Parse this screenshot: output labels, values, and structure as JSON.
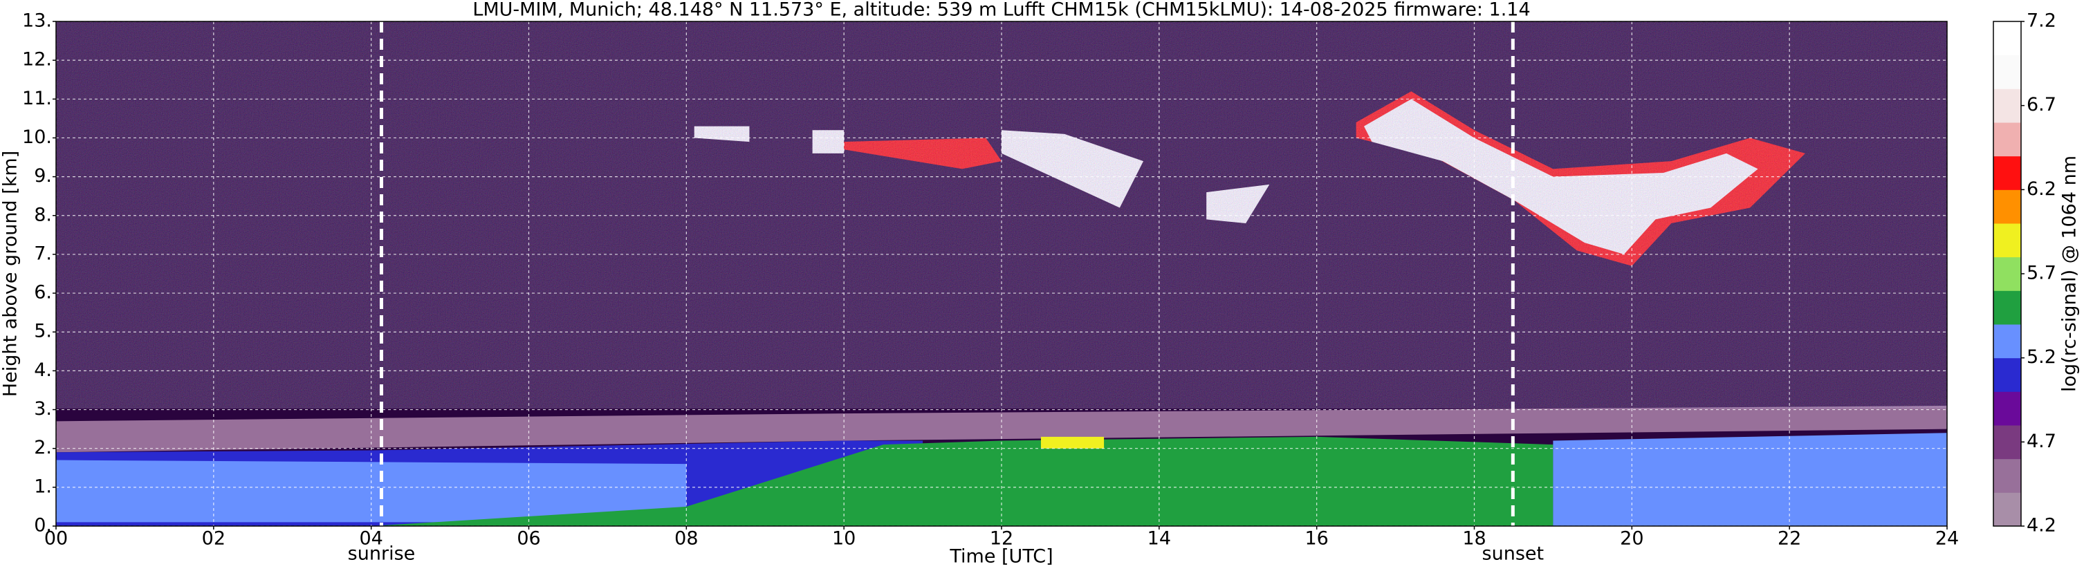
{
  "chart_data": {
    "type": "heatmap",
    "title": "LMU-MIM, Munich; 48.148° N 11.573° E, altitude: 539 m    Lufft CHM15k (CHM15kLMU): 14-08-2025    firmware: 1.14",
    "x_label": "Time [UTC]",
    "y_label": "Height above ground [km]",
    "colorbar_label": "log(rc-signal) @ 1064 nm",
    "xlim": [
      0,
      24
    ],
    "xticks": [
      {
        "value": 0,
        "label": "00"
      },
      {
        "value": 2,
        "label": "02"
      },
      {
        "value": 4,
        "label": "04"
      },
      {
        "value": 6,
        "label": "06"
      },
      {
        "value": 8,
        "label": "08"
      },
      10,
      12,
      14,
      16,
      18,
      20,
      22,
      24
    ],
    "ylim": [
      0,
      13
    ],
    "yticks": [
      {
        "value": 0,
        "label": "0."
      },
      {
        "value": 1,
        "label": "1."
      },
      {
        "value": 2,
        "label": "2."
      },
      {
        "value": 3,
        "label": "3."
      },
      {
        "value": 4,
        "label": "4."
      },
      {
        "value": 5,
        "label": "5."
      },
      {
        "value": 6,
        "label": "6."
      },
      {
        "value": 7,
        "label": "7."
      },
      {
        "value": 8,
        "label": "8."
      },
      {
        "value": 9,
        "label": "9."
      },
      {
        "value": 10,
        "label": "10."
      },
      {
        "value": 11,
        "label": "11."
      },
      {
        "value": 12,
        "label": "12."
      },
      {
        "value": 13,
        "label": "13."
      }
    ],
    "clim": [
      4.2,
      7.2
    ],
    "cticks": [
      4.2,
      4.7,
      5.2,
      5.7,
      6.2,
      6.7,
      7.2
    ],
    "colormap": [
      "#a88ea8",
      "#98709a",
      "#7a3a80",
      "#6a0a9a",
      "#2a2ad0",
      "#6890ff",
      "#20a040",
      "#90e060",
      "#f0f020",
      "#ff9000",
      "#ff1010",
      "#f0b0b0",
      "#f4e4e4",
      "#fafafa",
      "#ffffff"
    ],
    "grid": true,
    "grid_color": "#ffffff",
    "markers": [
      {
        "x": 4.13,
        "label": "sunrise"
      },
      {
        "x": 18.49,
        "label": "sunset"
      }
    ],
    "regions": [
      {
        "x": [
          0,
          24,
          24,
          0
        ],
        "y": [
          0,
          0,
          13,
          13
        ],
        "value": 4.9
      },
      {
        "x": [
          0,
          10,
          24,
          24,
          10,
          0
        ],
        "y": [
          1.9,
          2.2,
          2.5,
          3.1,
          2.9,
          2.7
        ],
        "value": 4.6
      },
      {
        "x": [
          0,
          11,
          11,
          10,
          4,
          0
        ],
        "y": [
          0,
          0,
          2.2,
          2.2,
          1.95,
          1.9
        ],
        "value": 5.1
      },
      {
        "x": [
          0,
          8,
          8,
          0
        ],
        "y": [
          0.1,
          0.1,
          1.6,
          1.7
        ],
        "value": 5.3
      },
      {
        "x": [
          4,
          19,
          19,
          16,
          12,
          10.5,
          8
        ],
        "y": [
          0,
          0,
          2.1,
          2.3,
          2.2,
          2.1,
          0.5
        ],
        "value": 5.5
      },
      {
        "x": [
          19,
          24,
          24,
          19
        ],
        "y": [
          0,
          0,
          2.4,
          2.2
        ],
        "value": 5.3
      },
      {
        "x": [
          12.5,
          13.3,
          13.3,
          12.5
        ],
        "y": [
          2.0,
          2.0,
          2.3,
          2.3
        ],
        "value": 5.9
      },
      {
        "x": [
          8.1,
          8.8,
          8.8,
          8.1
        ],
        "y": [
          10.0,
          9.9,
          10.3,
          10.3
        ],
        "value": 6.9
      },
      {
        "x": [
          9.6,
          10.0,
          10.0,
          9.6
        ],
        "y": [
          9.6,
          9.6,
          10.2,
          10.2
        ],
        "value": 6.9
      },
      {
        "x": [
          10,
          11.5,
          12,
          11.8,
          10
        ],
        "y": [
          9.7,
          9.2,
          9.4,
          10.0,
          9.9
        ],
        "value": 6.3
      },
      {
        "x": [
          12,
          13.5,
          13.8,
          12.8,
          12
        ],
        "y": [
          9.6,
          8.2,
          9.4,
          10.1,
          10.2
        ],
        "value": 6.9
      },
      {
        "x": [
          14.6,
          15.4,
          15.1,
          14.6
        ],
        "y": [
          8.6,
          8.8,
          7.8,
          7.9
        ],
        "value": 6.9
      },
      {
        "x": [
          16.5,
          17.2,
          18,
          19,
          20.5,
          21.5,
          22.2,
          21.5,
          20.5,
          20,
          19.3,
          18.5,
          17.5,
          16.5
        ],
        "y": [
          10.4,
          11.2,
          10.2,
          9.2,
          9.4,
          10,
          9.6,
          8.2,
          7.8,
          6.7,
          7.1,
          8.4,
          9.5,
          10.0
        ],
        "value": 6.2
      },
      {
        "x": [
          16.6,
          17.2,
          18,
          19,
          20.4,
          21.2,
          21.6,
          21.0,
          20.3,
          19.9,
          19.4,
          18.5,
          17.6,
          16.7
        ],
        "y": [
          10.3,
          11.0,
          10.0,
          9.0,
          9.1,
          9.6,
          9.2,
          8.2,
          7.9,
          7.0,
          7.3,
          8.4,
          9.4,
          9.9
        ],
        "value": 6.9
      }
    ]
  }
}
